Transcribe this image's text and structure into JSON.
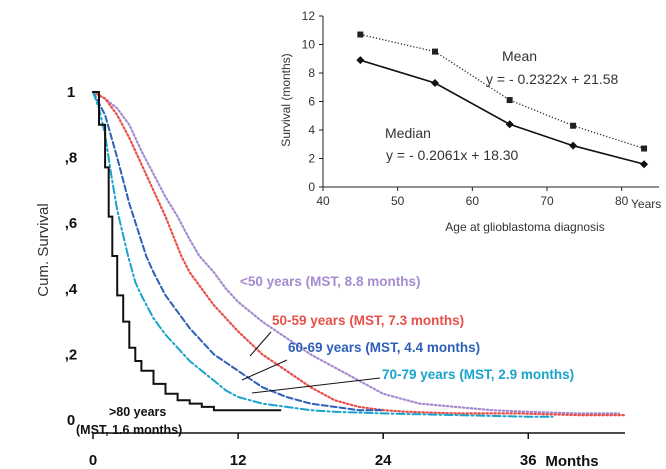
{
  "chart_data": [
    {
      "type": "line",
      "subtype": "kaplan-meier",
      "ylabel": "Cum. Survival",
      "xlabel": "Months",
      "xlim": [
        0,
        44
      ],
      "ylim": [
        0,
        1
      ],
      "xticks": [
        0,
        12,
        24,
        36
      ],
      "xtick_labels": [
        "0",
        "12",
        "24",
        "36"
      ],
      "yticks": [
        0,
        0.2,
        0.4,
        0.6,
        0.8,
        1
      ],
      "ytick_labels": [
        "0",
        ",2",
        ",4",
        ",6",
        ",8",
        "1"
      ],
      "series": [
        {
          "name": "<50 years (MST, 8.8 months)",
          "color": "#a58bd0",
          "style": "dotted",
          "x": [
            0,
            1,
            2,
            3,
            4,
            5,
            6,
            7,
            8,
            8.8,
            10,
            11,
            12,
            14,
            16,
            18,
            20,
            22,
            24,
            27,
            30,
            33,
            36,
            40,
            43.5
          ],
          "y": [
            1,
            0.98,
            0.95,
            0.9,
            0.82,
            0.75,
            0.68,
            0.62,
            0.55,
            0.5,
            0.45,
            0.4,
            0.36,
            0.3,
            0.25,
            0.2,
            0.16,
            0.12,
            0.08,
            0.05,
            0.04,
            0.03,
            0.025,
            0.02,
            0.02
          ]
        },
        {
          "name": "50-59 years (MST, 7.3 months)",
          "color": "#e8504a",
          "style": "dotted",
          "x": [
            0,
            1,
            2,
            3,
            4,
            5,
            6,
            7.3,
            8,
            9,
            10,
            11,
            12,
            14,
            16,
            18,
            20,
            22,
            24,
            26,
            30,
            35,
            40,
            44
          ],
          "y": [
            1,
            0.98,
            0.93,
            0.86,
            0.78,
            0.7,
            0.62,
            0.5,
            0.45,
            0.4,
            0.35,
            0.31,
            0.27,
            0.2,
            0.15,
            0.1,
            0.06,
            0.04,
            0.03,
            0.025,
            0.02,
            0.02,
            0.015,
            0.015
          ]
        },
        {
          "name": "60-69 years (MST, 4.4 months)",
          "color": "#2e5fb8",
          "style": "dashed",
          "x": [
            0,
            1,
            2,
            3,
            4.4,
            5,
            6,
            7,
            8,
            10,
            12,
            14,
            16,
            18,
            20,
            22,
            24
          ],
          "y": [
            1,
            0.93,
            0.8,
            0.66,
            0.5,
            0.45,
            0.38,
            0.33,
            0.28,
            0.2,
            0.15,
            0.1,
            0.07,
            0.05,
            0.04,
            0.03,
            0.03
          ]
        },
        {
          "name": "70-79 years (MST, 2.9 months)",
          "color": "#1aa3cc",
          "style": "dashdot",
          "x": [
            0,
            0.5,
            1,
            1.5,
            2,
            2.9,
            3.5,
            4,
            5,
            6,
            7,
            8,
            9,
            10,
            11,
            12,
            13,
            14,
            16,
            18,
            20,
            24,
            30,
            36,
            38
          ],
          "y": [
            1,
            0.95,
            0.87,
            0.75,
            0.64,
            0.5,
            0.42,
            0.38,
            0.31,
            0.26,
            0.22,
            0.18,
            0.15,
            0.12,
            0.09,
            0.07,
            0.06,
            0.05,
            0.04,
            0.03,
            0.025,
            0.02,
            0.015,
            0.01,
            0.01
          ]
        },
        {
          "name": ">80 years (MST, 1.6 months)",
          "color": "#111111",
          "style": "solid",
          "x": [
            0,
            0.5,
            1,
            1.3,
            1.6,
            2,
            2.5,
            3,
            3.5,
            4,
            5,
            6,
            7,
            8,
            9,
            10,
            12,
            15.5
          ],
          "y": [
            1,
            0.9,
            0.77,
            0.62,
            0.5,
            0.38,
            0.3,
            0.22,
            0.18,
            0.15,
            0.11,
            0.08,
            0.06,
            0.05,
            0.04,
            0.03,
            0.03,
            0.03
          ]
        }
      ]
    },
    {
      "type": "line",
      "xlabel": "Age at glioblastoma diagnosis",
      "ylabel": "Survival (months)",
      "xunit_label": "Years",
      "xlim": [
        40,
        85
      ],
      "ylim": [
        0,
        12
      ],
      "xticks": [
        40,
        50,
        60,
        70,
        80
      ],
      "yticks": [
        0,
        2,
        4,
        6,
        8,
        10,
        12
      ],
      "series": [
        {
          "name": "Mean",
          "equation": "y = - 0.2322x + 21.58",
          "color": "#333333",
          "style": "dotted",
          "marker": "square",
          "x": [
            45,
            55,
            65,
            73.5,
            83
          ],
          "y": [
            10.7,
            9.5,
            6.1,
            4.3,
            2.7
          ]
        },
        {
          "name": "Median",
          "equation": "y = - 0.2061x + 18.30",
          "color": "#111111",
          "style": "solid",
          "marker": "diamond",
          "x": [
            45,
            55,
            65,
            73.5,
            83
          ],
          "y": [
            8.9,
            7.3,
            4.4,
            2.9,
            1.6
          ]
        }
      ]
    }
  ]
}
